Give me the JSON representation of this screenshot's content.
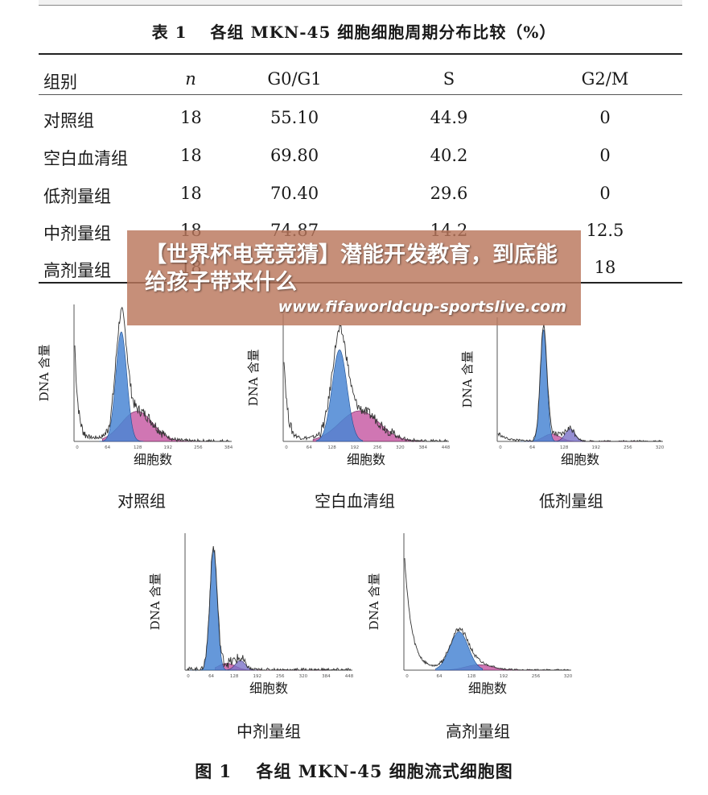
{
  "table": {
    "caption": "表 1　 各组 MKN-45 细胞细胞周期分布比较（%）",
    "headers": [
      "组别",
      "n",
      "G0/G1",
      "S",
      "G2/M"
    ],
    "rows": [
      [
        "对照组",
        "18",
        "55.10",
        "44.9",
        "0"
      ],
      [
        "空白血清组",
        "18",
        "69.80",
        "40.2",
        "0"
      ],
      [
        "低剂量组",
        "18",
        "70.40",
        "29.6",
        "0"
      ],
      [
        "中剂量组",
        "18",
        "74.87",
        "14.2",
        "12.5"
      ],
      [
        "高剂量组",
        "18",
        "",
        "",
        "18"
      ]
    ]
  },
  "figure": {
    "caption": "图 1　 各组 MKN-45 细胞流式细胞图",
    "ylabel": "DNA 含量",
    "xlabel": "细胞数",
    "panels": [
      {
        "label": "对照组",
        "ticks": [
          "0",
          "64",
          "128",
          "192",
          "256",
          "384"
        ]
      },
      {
        "label": "空白血清组",
        "ticks": [
          "0",
          "64",
          "128",
          "192",
          "256",
          "320",
          "384",
          "448"
        ]
      },
      {
        "label": "低剂量组",
        "ticks": [
          "0",
          "64",
          "128",
          "192",
          "256",
          "320"
        ]
      },
      {
        "label": "中剂量组",
        "ticks": [
          "0",
          "64",
          "128",
          "192",
          "256",
          "320",
          "384",
          "448"
        ]
      },
      {
        "label": "高剂量组",
        "ticks": [
          "0",
          "64",
          "128",
          "192",
          "256",
          "320"
        ]
      }
    ]
  },
  "watermark": {
    "title": "【世界杯电竞竞猜】潜能开发教育，到底能给孩子带来什么",
    "url": "www.fifaworldcup-sportslive.com"
  },
  "colors": {
    "g1_peak": "#4a86d4",
    "s_phase": "#c0489a",
    "g2_phase": "#7a72c8",
    "watermark_bg": "#ba765c"
  }
}
